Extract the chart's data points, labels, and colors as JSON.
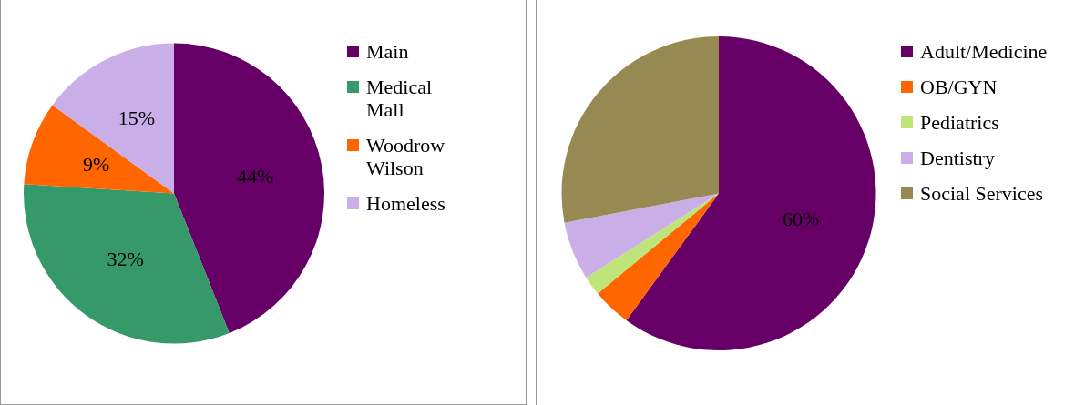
{
  "chart_data": [
    {
      "type": "pie",
      "categories": [
        "Main",
        "Medical Mall",
        "Woodrow Wilson",
        "Homeless"
      ],
      "values": [
        44,
        32,
        9,
        15
      ],
      "colors": [
        "#660066",
        "#35996a",
        "#ff6600",
        "#c9aee8"
      ],
      "value_labels": [
        "44%",
        "32%",
        "9%",
        "15%"
      ],
      "legend": "right"
    },
    {
      "type": "pie",
      "categories": [
        "Adult/Medicine",
        "OB/GYN",
        "Pediatrics",
        "Dentistry",
        "Social Services"
      ],
      "values": [
        60,
        4,
        2,
        6,
        28
      ],
      "colors": [
        "#660066",
        "#ff6600",
        "#bfe57a",
        "#c9aee8",
        "#968a52"
      ],
      "value_labels": [
        "60%",
        null,
        null,
        null,
        null
      ],
      "legend": "right"
    }
  ]
}
